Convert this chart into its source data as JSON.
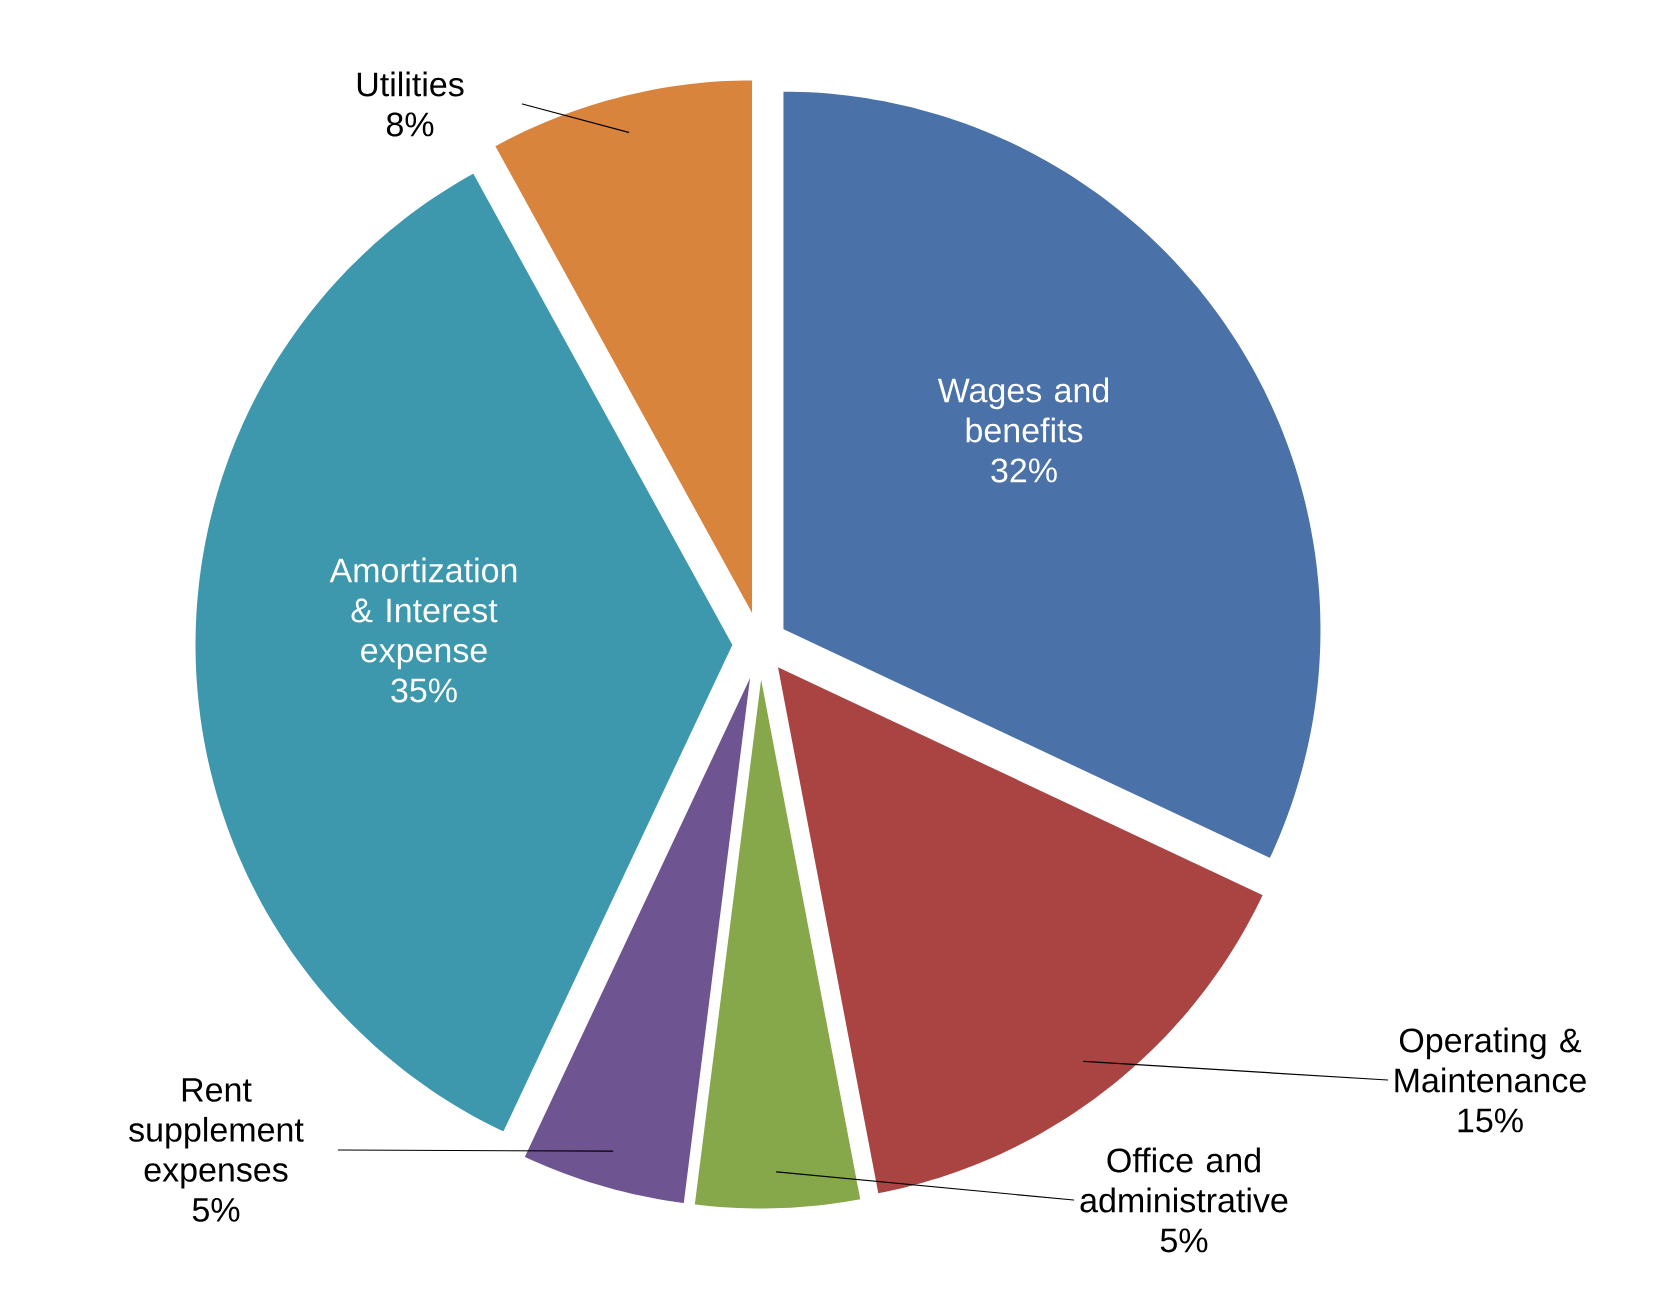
{
  "chart_data": {
    "type": "pie",
    "categories": [
      "Wages and benefits",
      "Operating & Maintenance",
      "Office and administrative",
      "Rent supplement expenses",
      "Amortization & Interest expense",
      "Utilities"
    ],
    "values": [
      32,
      15,
      5,
      5,
      35,
      8
    ],
    "value_labels": [
      "32%",
      "15%",
      "5%",
      "5%",
      "35%",
      "8%"
    ],
    "colors": [
      "#4a72a8",
      "#a94442",
      "#86a84a",
      "#6e5592",
      "#3d98ae",
      "#d9843d"
    ]
  }
}
